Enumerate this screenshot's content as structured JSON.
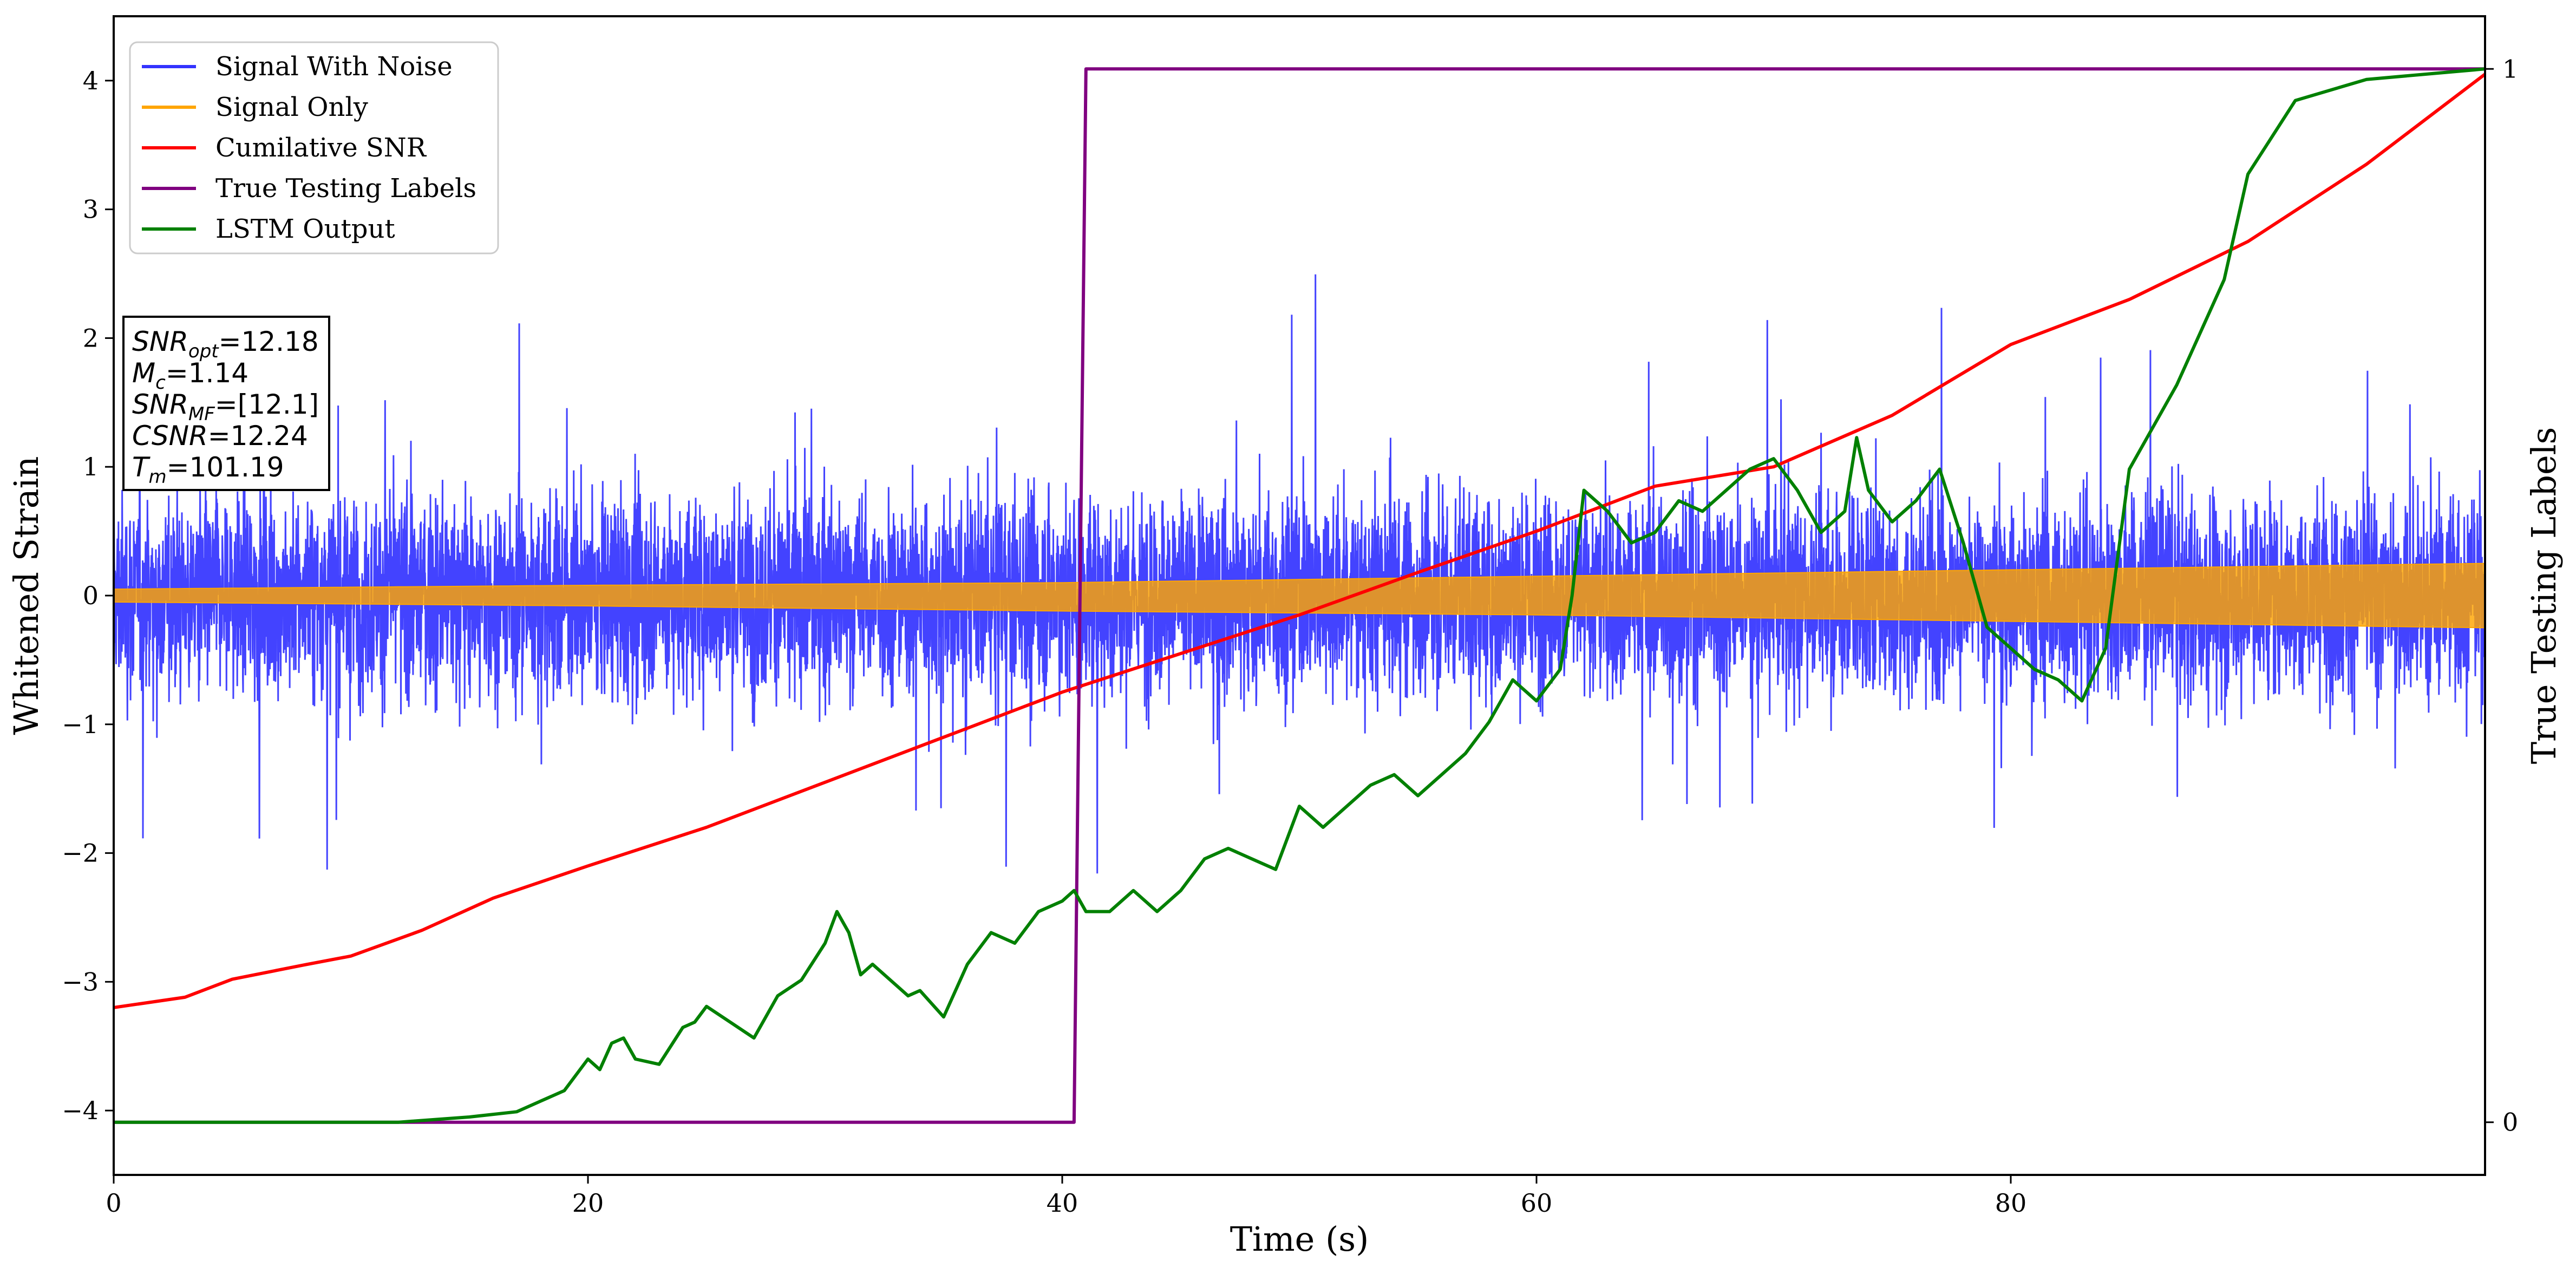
{
  "chart_data": {
    "type": "line",
    "xlabel": "Time (s)",
    "ylabel": "Whitened Strain",
    "ylabel_right": "True Testing Labels",
    "xlim": [
      0,
      100
    ],
    "ylim": [
      -4.5,
      4.5
    ],
    "ylim_right": [
      -0.05,
      1.05
    ],
    "x_ticks": [
      0,
      20,
      40,
      60,
      80
    ],
    "x_tick_labels": [
      "0",
      "20",
      "40",
      "60",
      "80"
    ],
    "y_ticks": [
      -4,
      -3,
      -2,
      -1,
      0,
      1,
      2,
      3,
      4
    ],
    "y_tick_labels": [
      "−4",
      "−3",
      "−2",
      "−1",
      "0",
      "1",
      "2",
      "3",
      "4"
    ],
    "y_right_ticks": [
      0,
      1
    ],
    "y_right_tick_labels": [
      "0",
      "1"
    ],
    "grid": false,
    "legend_position": "top-left",
    "info_box": [
      {
        "base": "SNR",
        "sub": "opt",
        "value": "=12.18"
      },
      {
        "base": "M",
        "sub": "c",
        "value": "=1.14"
      },
      {
        "base": "SNR",
        "sub": "MF",
        "value": "=[12.1]"
      },
      {
        "base": "CSNR",
        "sub": "",
        "value": "=12.24"
      },
      {
        "base": "T",
        "sub": "m",
        "value": "=101.19"
      }
    ],
    "series": [
      {
        "name": "Signal With Noise",
        "color": "#3333ff",
        "style": "noise",
        "amplitude_estimate": 3.3,
        "x_range": [
          0,
          100
        ]
      },
      {
        "name": "Signal Only",
        "color": "#ffa500",
        "style": "envelope",
        "x": [
          0,
          20,
          40,
          60,
          80,
          100
        ],
        "upper": [
          0.05,
          0.08,
          0.1,
          0.15,
          0.2,
          0.25
        ],
        "lower": [
          -0.05,
          -0.08,
          -0.12,
          -0.15,
          -0.2,
          -0.25
        ]
      },
      {
        "name": "Cumilative SNR",
        "color": "#ff0000",
        "axis": "left",
        "x": [
          0,
          3,
          5,
          8,
          10,
          13,
          16,
          20,
          25,
          30,
          35,
          40,
          45,
          50,
          55,
          60,
          65,
          70,
          75,
          80,
          85,
          90,
          95,
          100
        ],
        "y": [
          -3.2,
          -3.12,
          -2.98,
          -2.87,
          -2.8,
          -2.6,
          -2.35,
          -2.1,
          -1.8,
          -1.45,
          -1.1,
          -0.75,
          -0.45,
          -0.15,
          0.18,
          0.5,
          0.85,
          1.0,
          1.4,
          1.95,
          2.3,
          2.75,
          3.35,
          4.05
        ]
      },
      {
        "name": "True Testing Labels",
        "color": "#800080",
        "axis": "right",
        "x": [
          0,
          40.5,
          41.0,
          100
        ],
        "y": [
          0,
          0,
          1,
          1
        ]
      },
      {
        "name": "LSTM Output",
        "color": "#008000",
        "axis": "right",
        "x": [
          0,
          12,
          15,
          17,
          18,
          19,
          20,
          20.5,
          21,
          21.5,
          22,
          23,
          24,
          24.5,
          25,
          26,
          27,
          28,
          29,
          30,
          30.5,
          31,
          31.5,
          32,
          33,
          33.5,
          34,
          35,
          36,
          37,
          38,
          39,
          40,
          40.5,
          41,
          42,
          43,
          44,
          45,
          46,
          47,
          48,
          49,
          50,
          51,
          52,
          53,
          54,
          55,
          56,
          57,
          58,
          59,
          60,
          61,
          61.5,
          62,
          63,
          64,
          65,
          66,
          67,
          68,
          69,
          70,
          71,
          72,
          73,
          73.5,
          74,
          75,
          76,
          77,
          78,
          79,
          80,
          81,
          82,
          83,
          84,
          85,
          86,
          86.5,
          87,
          88,
          89,
          90,
          92,
          95,
          100
        ],
        "y": [
          0,
          0,
          0.005,
          0.01,
          0.02,
          0.03,
          0.06,
          0.05,
          0.075,
          0.08,
          0.06,
          0.055,
          0.09,
          0.095,
          0.11,
          0.095,
          0.08,
          0.12,
          0.135,
          0.17,
          0.2,
          0.18,
          0.14,
          0.15,
          0.13,
          0.12,
          0.125,
          0.1,
          0.15,
          0.18,
          0.17,
          0.2,
          0.21,
          0.22,
          0.2,
          0.2,
          0.22,
          0.2,
          0.22,
          0.25,
          0.26,
          0.25,
          0.24,
          0.3,
          0.28,
          0.3,
          0.32,
          0.33,
          0.31,
          0.33,
          0.35,
          0.38,
          0.42,
          0.4,
          0.43,
          0.5,
          0.6,
          0.58,
          0.55,
          0.56,
          0.59,
          0.58,
          0.6,
          0.62,
          0.63,
          0.6,
          0.56,
          0.58,
          0.65,
          0.6,
          0.57,
          0.59,
          0.62,
          0.55,
          0.47,
          0.45,
          0.43,
          0.42,
          0.4,
          0.45,
          0.62,
          0.66,
          0.68,
          0.7,
          0.75,
          0.8,
          0.9,
          0.97,
          0.99,
          1.0
        ]
      }
    ]
  }
}
